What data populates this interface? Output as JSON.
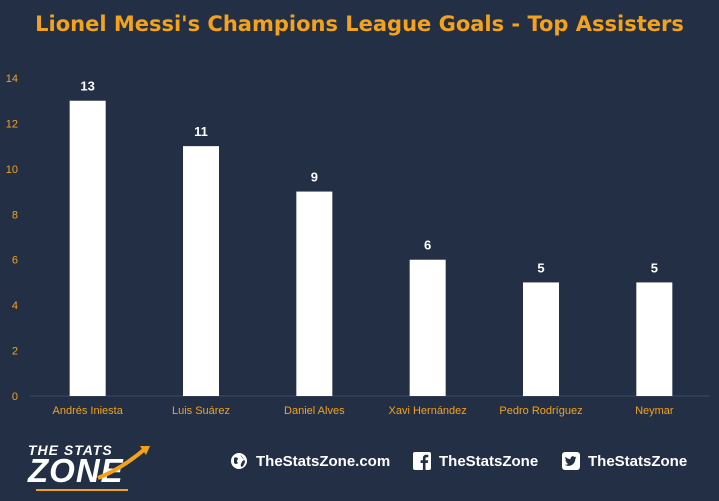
{
  "chart_data": {
    "type": "bar",
    "title": "Lionel Messi's Champions League Goals - Top Assisters",
    "categories": [
      "Andrés Iniesta",
      "Luis Suárez",
      "Daniel Alves",
      "Xavi Hernández",
      "Pedro Rodríguez",
      "Neymar"
    ],
    "values": [
      13,
      11,
      9,
      6,
      5,
      5
    ],
    "xlabel": "",
    "ylabel": "",
    "ylim": [
      0,
      14
    ],
    "yticks": [
      0,
      2,
      4,
      6,
      8,
      10,
      12,
      14
    ],
    "grid": false,
    "legend": "none"
  },
  "colors": {
    "background": "#232f45",
    "bar": "#ffffff",
    "accent": "#f5a21b",
    "data_label": "#ffffff"
  },
  "footer": {
    "logo_top": "THE STATS",
    "logo_main": "ZONE",
    "website": "TheStatsZone.com",
    "facebook": "TheStatsZone",
    "twitter": "TheStatsZone",
    "icons": [
      "globe-icon",
      "facebook-icon",
      "twitter-icon"
    ]
  }
}
